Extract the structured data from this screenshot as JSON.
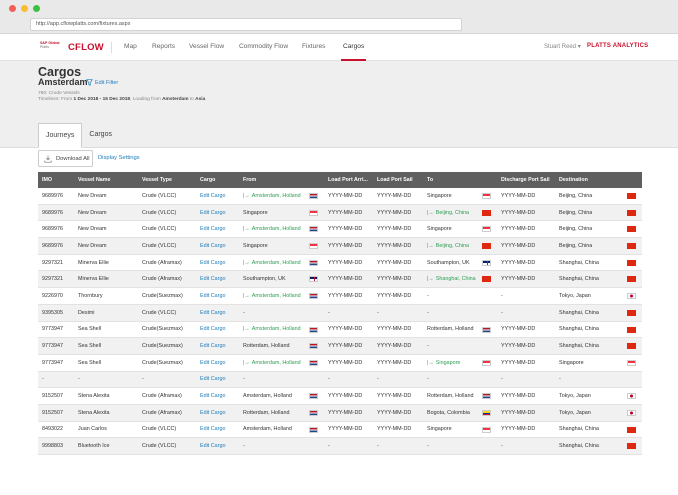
{
  "browser": {
    "url": "http://app.cflowplatts.com/fixtures.aspx"
  },
  "nav": {
    "brand_small_line1": "S&P Global",
    "brand_small_line2": "Platts",
    "brand": "CFLOW",
    "items": [
      "Map",
      "Reports",
      "Vessel Flow",
      "Commodity Flow",
      "Fixtures",
      "Cargos"
    ],
    "active": "Cargos",
    "user": "Stuart Reed",
    "user_caret": "▾",
    "platts_analytics": "PLATTS ANALYTICS"
  },
  "header": {
    "title": "Cargos",
    "subtitle": "Amsterdam",
    "edit_filter": "Edit Filter",
    "meta_line1": "780: Crude Vessels",
    "meta_line2_prefix": "Timelines: From ",
    "meta_range": "1 Dec 2018 - 15 Dec 2018",
    "meta_loading": ", Loading from ",
    "meta_from": "Amsterdam",
    "meta_to_word": " to ",
    "meta_to": "Asia"
  },
  "tabs": [
    {
      "label": "Journeys",
      "active": true
    },
    {
      "label": "Cargos",
      "active": false
    }
  ],
  "toolbar": {
    "download_label": "Download All",
    "display_settings": "Display Settings"
  },
  "table": {
    "columns": [
      "IMO",
      "Vessel Name",
      "Vessel Type",
      "Cargo",
      "From",
      "Load Port Arri...",
      "Load Port Sail",
      "To",
      "Discharge Port Sail",
      "Destination"
    ],
    "rows": [
      {
        "imo": "9689976",
        "vessel": "New Dream",
        "type": "Crude (VLCC)",
        "cargo": "Edit Cargo",
        "from": "Amsterdam, Holland",
        "from_arrow": true,
        "from_flag": "nl",
        "lpa": "YYYY-MM-DD",
        "lps": "YYYY-MM-DD",
        "to": "Singapore",
        "to_arrow": false,
        "to_flag": "sg",
        "dps": "YYYY-MM-DD",
        "dest": "Beijing, China",
        "dest_flag": "cn"
      },
      {
        "imo": "9689976",
        "vessel": "New Dream",
        "type": "Crude (VLCC)",
        "cargo": "Edit Cargo",
        "from": "Singapore",
        "from_arrow": false,
        "from_flag": "sg",
        "lpa": "YYYY-MM-DD",
        "lps": "YYYY-MM-DD",
        "to": "Beijing, China",
        "to_arrow": true,
        "to_flag": "cn",
        "dps": "YYYY-MM-DD",
        "dest": "Beijing, China",
        "dest_flag": "cn"
      },
      {
        "imo": "9689976",
        "vessel": "New Dream",
        "type": "Crude (VLCC)",
        "cargo": "Edit Cargo",
        "from": "Amsterdam, Holland",
        "from_arrow": true,
        "from_flag": "nl",
        "lpa": "YYYY-MM-DD",
        "lps": "YYYY-MM-DD",
        "to": "Singapore",
        "to_arrow": false,
        "to_flag": "sg",
        "dps": "YYYY-MM-DD",
        "dest": "Beijing, China",
        "dest_flag": "cn"
      },
      {
        "imo": "9689976",
        "vessel": "New Dream",
        "type": "Crude (VLCC)",
        "cargo": "Edit Cargo",
        "from": "Singapore",
        "from_arrow": false,
        "from_flag": "sg",
        "lpa": "YYYY-MM-DD",
        "lps": "YYYY-MM-DD",
        "to": "Beijing, China",
        "to_arrow": true,
        "to_flag": "cn",
        "dps": "YYYY-MM-DD",
        "dest": "Beijing, China",
        "dest_flag": "cn"
      },
      {
        "imo": "9297321",
        "vessel": "Minerva Ellie",
        "type": "Crude (Aframax)",
        "cargo": "Edit Cargo",
        "from": "Amsterdam, Holland",
        "from_arrow": true,
        "from_flag": "nl",
        "lpa": "YYYY-MM-DD",
        "lps": "YYYY-MM-DD",
        "to": "Southampton, UK",
        "to_arrow": false,
        "to_flag": "uk",
        "dps": "YYYY-MM-DD",
        "dest": "Shanghai, China",
        "dest_flag": "cn"
      },
      {
        "imo": "9297321",
        "vessel": "Minerva Ellie",
        "type": "Crude (Aframax)",
        "cargo": "Edit Cargo",
        "from": "Southampton, UK",
        "from_arrow": false,
        "from_flag": "uk",
        "lpa": "YYYY-MM-DD",
        "lps": "YYYY-MM-DD",
        "to": "Shanghai, China",
        "to_arrow": true,
        "to_flag": "cn",
        "dps": "YYYY-MM-DD",
        "dest": "Shanghai, China",
        "dest_flag": "cn"
      },
      {
        "imo": "9226970",
        "vessel": "Thornbury",
        "type": "Crude(Suezmax)",
        "cargo": "Edit Cargo",
        "from": "Amsterdam, Holland",
        "from_arrow": true,
        "from_flag": "nl",
        "lpa": "YYYY-MM-DD",
        "lps": "YYYY-MM-DD",
        "to": "-",
        "to_arrow": false,
        "to_flag": "",
        "dps": "-",
        "dest": "Tokyo, Japan",
        "dest_flag": "jp"
      },
      {
        "imo": "9395305",
        "vessel": "Desimi",
        "type": "Crude (VLCC)",
        "cargo": "Edit Cargo",
        "from": "-",
        "from_arrow": false,
        "from_flag": "",
        "lpa": "-",
        "lps": "-",
        "to": "-",
        "to_arrow": false,
        "to_flag": "",
        "dps": "-",
        "dest": "Shanghai, China",
        "dest_flag": "cn"
      },
      {
        "imo": "9773947",
        "vessel": "Sea Shell",
        "type": "Crude(Suezmax)",
        "cargo": "Edit Cargo",
        "from": "Amsterdam, Holland",
        "from_arrow": true,
        "from_flag": "nl",
        "lpa": "YYYY-MM-DD",
        "lps": "YYYY-MM-DD",
        "to": "Rotterdam, Holland",
        "to_arrow": false,
        "to_flag": "nl",
        "dps": "YYYY-MM-DD",
        "dest": "Shanghai, China",
        "dest_flag": "cn"
      },
      {
        "imo": "9773947",
        "vessel": "Sea Shell",
        "type": "Crude(Suezmax)",
        "cargo": "Edit Cargo",
        "from": "Rotterdam, Holland",
        "from_arrow": false,
        "from_flag": "nl",
        "lpa": "YYYY-MM-DD",
        "lps": "YYYY-MM-DD",
        "to": "-",
        "to_arrow": false,
        "to_flag": "",
        "dps": "YYYY-MM-DD",
        "dest": "Shanghai, China",
        "dest_flag": "cn"
      },
      {
        "imo": "9773947",
        "vessel": "Sea Shell",
        "type": "Crude(Suezmax)",
        "cargo": "Edit Cargo",
        "from": "Amsterdam, Holland",
        "from_arrow": true,
        "from_flag": "nl",
        "lpa": "YYYY-MM-DD",
        "lps": "YYYY-MM-DD",
        "to": "Singapore",
        "to_arrow": true,
        "to_flag": "sg",
        "dps": "YYYY-MM-DD",
        "dest": "Singapore",
        "dest_flag": "sg"
      },
      {
        "imo": "-",
        "vessel": "-",
        "type": "-",
        "cargo": "Edit Cargo",
        "from": "-",
        "from_arrow": false,
        "from_flag": "",
        "lpa": "-",
        "lps": "-",
        "to": "-",
        "to_arrow": false,
        "to_flag": "",
        "dps": "-",
        "dest": "-",
        "dest_flag": ""
      },
      {
        "imo": "9152507",
        "vessel": "Stena Alexita",
        "type": "Crude (Aframax)",
        "cargo": "Edit Cargo",
        "from": "Amsterdam, Holland",
        "from_arrow": false,
        "from_flag": "nl",
        "lpa": "YYYY-MM-DD",
        "lps": "YYYY-MM-DD",
        "to": "Rotterdam, Holland",
        "to_arrow": false,
        "to_flag": "nl",
        "dps": "YYYY-MM-DD",
        "dest": "Tokyo, Japan",
        "dest_flag": "jp"
      },
      {
        "imo": "9152507",
        "vessel": "Stena Alexita",
        "type": "Crude (Aframax)",
        "cargo": "Edit Cargo",
        "from": "Rotterdam, Holland",
        "from_arrow": false,
        "from_flag": "nl",
        "lpa": "YYYY-MM-DD",
        "lps": "YYYY-MM-DD",
        "to": "Bogota, Colombia",
        "to_arrow": false,
        "to_flag": "co",
        "dps": "YYYY-MM-DD",
        "dest": "Tokyo, Japan",
        "dest_flag": "jp"
      },
      {
        "imo": "8493022",
        "vessel": "Juan Carlos",
        "type": "Crude (VLCC)",
        "cargo": "Edit Cargo",
        "from": "Amsterdam, Holland",
        "from_arrow": false,
        "from_flag": "nl",
        "lpa": "YYYY-MM-DD",
        "lps": "YYYY-MM-DD",
        "to": "Singapore",
        "to_arrow": false,
        "to_flag": "sg",
        "dps": "YYYY-MM-DD",
        "dest": "Shanghai, China",
        "dest_flag": "cn"
      },
      {
        "imo": "9998803",
        "vessel": "Bluetooth Ice",
        "type": "Crude (VLCC)",
        "cargo": "Edit Cargo",
        "from": "-",
        "from_arrow": false,
        "from_flag": "",
        "lpa": "-",
        "lps": "-",
        "to": "-",
        "to_arrow": false,
        "to_flag": "",
        "dps": "-",
        "dest": "Shanghai, China",
        "dest_flag": "cn"
      }
    ]
  },
  "colors": {
    "brand_red": "#c8102e",
    "link_blue": "#1f7dbd",
    "route_green": "#2e9e54",
    "table_header": "#5f5f5f"
  },
  "icons": {
    "filter": "filter-icon",
    "download": "download-icon",
    "route_arrow": "route-arrow-icon"
  }
}
